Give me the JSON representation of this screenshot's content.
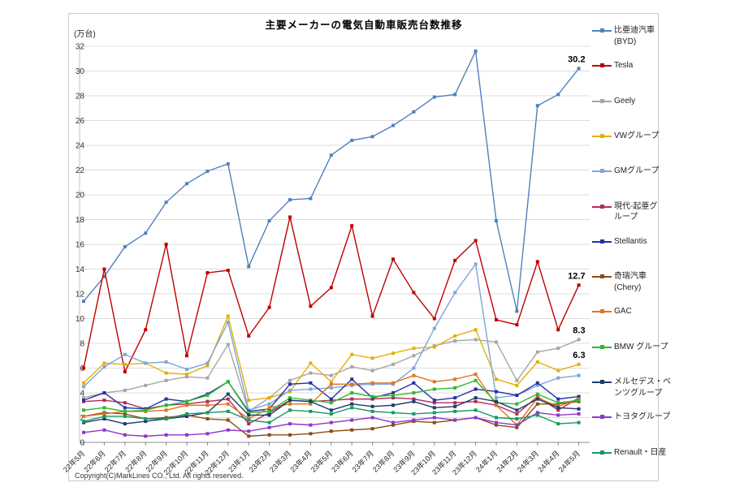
{
  "header": {
    "title": "主要メーカーの電気自動車販売台数推移",
    "unit_label": "(万台)"
  },
  "footer": {
    "copyright": "Copyright(C)MarkLines CO., Ltd. All rights reserved."
  },
  "chart_data": {
    "type": "line",
    "title": "主要メーカーの電気自動車販売台数推移",
    "ylabel": "(万台)",
    "ylim": [
      0,
      32
    ],
    "ytick_step": 2,
    "grid": true,
    "legend_position": "right",
    "categories": [
      "22年5月",
      "22年6月",
      "22年7月",
      "22年8月",
      "22年9月",
      "22年10月",
      "22年11月",
      "22年12月",
      "23年1月",
      "23年2月",
      "23年3月",
      "23年4月",
      "23年5月",
      "23年6月",
      "23年7月",
      "23年8月",
      "23年9月",
      "23年10月",
      "23年11月",
      "23年12月",
      "24年1月",
      "24年2月",
      "24年3月",
      "24年4月",
      "24年5月"
    ],
    "series": [
      {
        "name": "比亜迪汽車(BYD)",
        "label_lines": [
          "比亜迪汽車",
          "(BYD)"
        ],
        "color": "#4f81bd",
        "values": [
          11.4,
          13.4,
          15.8,
          16.9,
          19.4,
          20.9,
          21.9,
          22.5,
          14.2,
          17.9,
          19.6,
          19.7,
          23.2,
          24.4,
          24.7,
          25.6,
          26.7,
          27.9,
          28.1,
          31.6,
          17.9,
          10.6,
          27.2,
          28.1,
          30.2
        ],
        "end_label": "30.2"
      },
      {
        "name": "Tesla",
        "label_lines": [
          "Tesla"
        ],
        "color": "#c00000",
        "values": [
          6.0,
          14.0,
          5.7,
          9.1,
          16.0,
          7.0,
          13.7,
          13.9,
          8.6,
          10.9,
          18.2,
          11.0,
          12.5,
          17.5,
          10.2,
          14.8,
          12.1,
          10.0,
          14.7,
          16.3,
          9.9,
          9.5,
          14.6,
          9.1,
          12.7
        ],
        "end_label": "12.7"
      },
      {
        "name": "Geely",
        "label_lines": [
          "Geely"
        ],
        "color": "#a6a6a6",
        "values": [
          3.6,
          4.0,
          4.2,
          4.6,
          5.0,
          5.3,
          5.2,
          7.9,
          2.5,
          3.6,
          5.0,
          5.6,
          5.4,
          6.1,
          5.8,
          6.3,
          7.0,
          7.8,
          8.2,
          8.3,
          8.1,
          5.0,
          7.3,
          7.6,
          8.3
        ],
        "end_label": "8.3"
      },
      {
        "name": "VWグループ",
        "label_lines": [
          "VWグループ"
        ],
        "color": "#e2b007",
        "values": [
          4.8,
          6.4,
          6.3,
          6.4,
          5.6,
          5.5,
          6.2,
          10.2,
          3.4,
          3.6,
          4.1,
          6.4,
          4.9,
          7.1,
          6.8,
          7.2,
          7.6,
          7.7,
          8.6,
          9.1,
          5.1,
          4.6,
          6.5,
          5.8,
          6.3
        ],
        "end_label": "6.3"
      },
      {
        "name": "GMグループ",
        "label_lines": [
          "GMグループ"
        ],
        "color": "#7ea6d9",
        "values": [
          4.5,
          6.1,
          7.1,
          6.4,
          6.5,
          5.9,
          6.4,
          9.7,
          2.6,
          3.1,
          4.2,
          4.3,
          4.4,
          4.6,
          4.7,
          4.7,
          6.0,
          9.2,
          12.1,
          14.4,
          3.6,
          3.8,
          4.6,
          5.2,
          5.4
        ]
      },
      {
        "name": "現代-起亜グループ",
        "label_lines": [
          "現代-起亜グ",
          "ループ"
        ],
        "color": "#b52a55",
        "values": [
          3.3,
          3.4,
          3.2,
          2.7,
          3.0,
          3.1,
          3.3,
          3.5,
          1.5,
          2.4,
          3.4,
          3.3,
          3.4,
          3.5,
          3.5,
          3.6,
          3.5,
          3.2,
          3.2,
          3.3,
          3.0,
          2.3,
          3.7,
          2.6,
          3.6
        ]
      },
      {
        "name": "Stellantis",
        "label_lines": [
          "Stellantis"
        ],
        "color": "#2330a6",
        "values": [
          3.4,
          4.0,
          2.8,
          2.7,
          3.5,
          3.3,
          3.9,
          4.9,
          2.5,
          2.7,
          4.7,
          4.8,
          3.5,
          5.1,
          3.6,
          4.0,
          4.8,
          3.4,
          3.6,
          4.3,
          4.1,
          3.8,
          4.8,
          3.5,
          3.7
        ]
      },
      {
        "name": "奇瑞汽車(Chery)",
        "label_lines": [
          "奇瑞汽車",
          "(Chery)"
        ],
        "color": "#8c4a16",
        "values": [
          2.1,
          2.4,
          2.3,
          1.9,
          2.0,
          2.2,
          1.9,
          1.8,
          0.5,
          0.6,
          0.6,
          0.7,
          0.9,
          1.0,
          1.1,
          1.4,
          1.7,
          1.6,
          1.8,
          2.0,
          1.4,
          1.2,
          3.1,
          3.1,
          3.3
        ]
      },
      {
        "name": "GAC",
        "label_lines": [
          "GAC"
        ],
        "color": "#e07420",
        "values": [
          2.1,
          2.3,
          2.5,
          2.5,
          2.6,
          3.0,
          3.0,
          3.1,
          1.9,
          2.8,
          3.1,
          3.1,
          4.7,
          4.7,
          4.8,
          4.8,
          5.4,
          4.9,
          5.1,
          5.5,
          3.0,
          1.4,
          3.6,
          2.9,
          3.5
        ]
      },
      {
        "name": "BMW グループ",
        "label_lines": [
          "BMW グループ"
        ],
        "color": "#2eb930",
        "values": [
          2.6,
          2.8,
          2.5,
          2.6,
          3.0,
          3.3,
          3.8,
          4.9,
          2.4,
          2.5,
          3.6,
          3.4,
          3.2,
          4.0,
          3.7,
          3.8,
          4.0,
          4.3,
          4.4,
          5.0,
          3.2,
          3.1,
          3.9,
          3.2,
          3.4
        ]
      },
      {
        "name": "メルセデス・ベンツグループ",
        "label_lines": [
          "メルセデス・ベ",
          "ンツグループ"
        ],
        "color": "#1c3d6e",
        "values": [
          1.6,
          1.9,
          1.5,
          1.7,
          1.9,
          2.1,
          2.4,
          3.9,
          2.2,
          2.2,
          3.4,
          3.3,
          2.6,
          3.1,
          2.9,
          3.0,
          3.3,
          2.8,
          2.9,
          3.6,
          3.3,
          2.6,
          3.5,
          2.8,
          2.7
        ]
      },
      {
        "name": "トヨタグループ",
        "label_lines": [
          "トヨタグループ"
        ],
        "color": "#8f36c9",
        "values": [
          0.8,
          1.0,
          0.6,
          0.5,
          0.6,
          0.6,
          0.7,
          1.0,
          0.9,
          1.2,
          1.5,
          1.4,
          1.6,
          1.8,
          2.0,
          1.6,
          1.8,
          2.0,
          1.8,
          2.0,
          1.6,
          1.4,
          2.4,
          2.2,
          2.3
        ]
      },
      {
        "name": "Renault・日産",
        "label_lines": [
          "Renault・日産"
        ],
        "color": "#179a62",
        "values": [
          1.7,
          2.1,
          2.1,
          1.9,
          1.9,
          2.3,
          2.4,
          2.5,
          1.8,
          1.6,
          2.6,
          2.5,
          2.3,
          2.8,
          2.5,
          2.4,
          2.3,
          2.4,
          2.5,
          2.6,
          2.0,
          1.9,
          2.2,
          1.5,
          1.6
        ]
      }
    ]
  }
}
